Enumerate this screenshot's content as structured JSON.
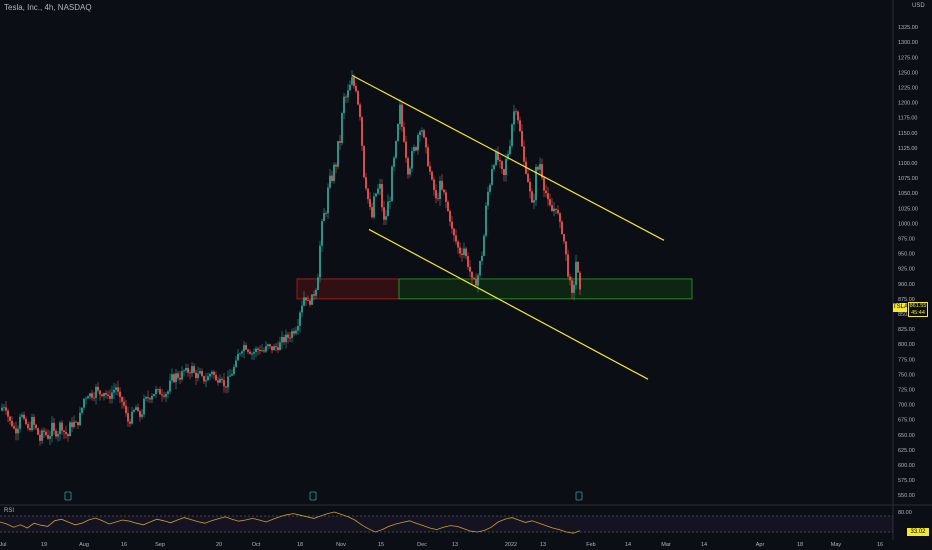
{
  "header": {
    "title": "Tesla, Inc., 4h, NASDAQ"
  },
  "currency": "USD",
  "badges": {
    "ticker": "TSLA",
    "price": "861.55",
    "countdown": "45:44",
    "rsi_value": "33.02"
  },
  "rsi": {
    "label": "RSI",
    "upper": "80.00"
  },
  "colors": {
    "up": "#26a69a",
    "down": "#ef5350",
    "channel": "#f5e92b",
    "rsi": "#c9a227",
    "demand_zone": "#2aa02a",
    "supply_zone": "#b22222"
  },
  "chart_data": {
    "type": "candlestick",
    "title": "Tesla, Inc., 4h, NASDAQ",
    "x_ticks": [
      "Jul",
      "19",
      "Aug",
      "16",
      "Sep",
      "20",
      "Oct",
      "18",
      "Nov",
      "15",
      "Dec",
      "13",
      "2022",
      "13",
      "Feb",
      "14",
      "Mar",
      "14",
      "Apr",
      "18",
      "May",
      "16"
    ],
    "y_ticks": [
      550,
      575,
      600,
      625,
      650,
      675,
      700,
      725,
      750,
      775,
      800,
      825,
      850,
      875,
      900,
      925,
      950,
      975,
      1000,
      1025,
      1050,
      1075,
      1100,
      1125,
      1150,
      1175,
      1200,
      1225,
      1250,
      1275,
      1300,
      1325
    ],
    "ylim": [
      542,
      1345
    ],
    "close_path": [
      [
        0,
        690
      ],
      [
        4,
        700
      ],
      [
        8,
        680
      ],
      [
        12,
        665
      ],
      [
        16,
        655
      ],
      [
        20,
        690
      ],
      [
        24,
        675
      ],
      [
        28,
        660
      ],
      [
        32,
        672
      ],
      [
        36,
        660
      ],
      [
        40,
        640
      ],
      [
        44,
        655
      ],
      [
        48,
        645
      ],
      [
        52,
        660
      ],
      [
        56,
        650
      ],
      [
        60,
        665
      ],
      [
        64,
        655
      ],
      [
        68,
        648
      ],
      [
        72,
        672
      ],
      [
        76,
        668
      ],
      [
        80,
        680
      ],
      [
        84,
        710
      ],
      [
        88,
        720
      ],
      [
        92,
        715
      ],
      [
        96,
        725
      ],
      [
        100,
        718
      ],
      [
        104,
        722
      ],
      [
        108,
        712
      ],
      [
        112,
        720
      ],
      [
        116,
        730
      ],
      [
        120,
        712
      ],
      [
        124,
        698
      ],
      [
        128,
        672
      ],
      [
        132,
        680
      ],
      [
        136,
        695
      ],
      [
        140,
        680
      ],
      [
        144,
        700
      ],
      [
        148,
        712
      ],
      [
        152,
        718
      ],
      [
        156,
        722
      ],
      [
        160,
        720
      ],
      [
        164,
        718
      ],
      [
        168,
        722
      ],
      [
        172,
        740
      ],
      [
        176,
        748
      ],
      [
        180,
        745
      ],
      [
        184,
        755
      ],
      [
        188,
        755
      ],
      [
        192,
        760
      ],
      [
        196,
        745
      ],
      [
        200,
        750
      ],
      [
        204,
        740
      ],
      [
        208,
        745
      ],
      [
        212,
        758
      ],
      [
        216,
        740
      ],
      [
        220,
        752
      ],
      [
        224,
        730
      ],
      [
        228,
        738
      ],
      [
        232,
        755
      ],
      [
        236,
        765
      ],
      [
        240,
        792
      ],
      [
        244,
        798
      ],
      [
        248,
        790
      ],
      [
        252,
        785
      ],
      [
        256,
        790
      ],
      [
        260,
        792
      ],
      [
        264,
        788
      ],
      [
        268,
        796
      ],
      [
        272,
        792
      ],
      [
        276,
        795
      ],
      [
        280,
        800
      ],
      [
        284,
        808
      ],
      [
        288,
        812
      ],
      [
        292,
        820
      ],
      [
        296,
        830
      ],
      [
        300,
        860
      ],
      [
        304,
        880
      ],
      [
        308,
        870
      ],
      [
        312,
        875
      ],
      [
        316,
        900
      ],
      [
        320,
        960
      ],
      [
        324,
        1010
      ],
      [
        328,
        1050
      ],
      [
        332,
        1080
      ],
      [
        336,
        1100
      ],
      [
        340,
        1140
      ],
      [
        344,
        1200
      ],
      [
        348,
        1215
      ],
      [
        352,
        1235
      ],
      [
        356,
        1220
      ],
      [
        360,
        1180
      ],
      [
        364,
        1090
      ],
      [
        368,
        1040
      ],
      [
        372,
        1010
      ],
      [
        376,
        1050
      ],
      [
        380,
        1060
      ],
      [
        384,
        1000
      ],
      [
        388,
        1030
      ],
      [
        392,
        1075
      ],
      [
        396,
        1120
      ],
      [
        400,
        1180
      ],
      [
        404,
        1140
      ],
      [
        408,
        1090
      ],
      [
        412,
        1110
      ],
      [
        416,
        1130
      ],
      [
        420,
        1170
      ],
      [
        424,
        1140
      ],
      [
        428,
        1100
      ],
      [
        432,
        1070
      ],
      [
        436,
        1040
      ],
      [
        440,
        1060
      ],
      [
        444,
        1050
      ],
      [
        448,
        1020
      ],
      [
        452,
        990
      ],
      [
        456,
        970
      ],
      [
        460,
        950
      ],
      [
        464,
        960
      ],
      [
        468,
        930
      ],
      [
        472,
        910
      ],
      [
        476,
        900
      ],
      [
        480,
        930
      ],
      [
        484,
        980
      ],
      [
        488,
        1050
      ],
      [
        492,
        1100
      ],
      [
        496,
        1110
      ],
      [
        500,
        1100
      ],
      [
        504,
        1080
      ],
      [
        508,
        1120
      ],
      [
        512,
        1170
      ],
      [
        516,
        1200
      ],
      [
        520,
        1150
      ],
      [
        524,
        1100
      ],
      [
        528,
        1070
      ],
      [
        532,
        1030
      ],
      [
        536,
        1080
      ],
      [
        540,
        1100
      ],
      [
        544,
        1060
      ],
      [
        548,
        1040
      ],
      [
        552,
        1020
      ],
      [
        556,
        1030
      ],
      [
        560,
        1000
      ],
      [
        564,
        970
      ],
      [
        568,
        920
      ],
      [
        572,
        880
      ],
      [
        576,
        940
      ],
      [
        580,
        880
      ]
    ],
    "channel_lines": [
      [
        [
          352,
          1245
        ],
        [
          664,
          972
        ]
      ],
      [
        [
          369,
          990
        ],
        [
          648,
          742
        ]
      ]
    ],
    "zones": [
      {
        "name": "supply",
        "x": [
          297,
          399
        ],
        "y": [
          875,
          908
        ]
      },
      {
        "name": "demand",
        "x": [
          399,
          692
        ],
        "y": [
          875,
          908
        ]
      }
    ],
    "rsi": {
      "ylim": [
        20,
        90
      ],
      "levels": [
        70,
        30
      ],
      "values": [
        55,
        50,
        42,
        48,
        40,
        52,
        47,
        44,
        58,
        62,
        55,
        48,
        52,
        60,
        65,
        58,
        50,
        55,
        60,
        57,
        52,
        48,
        55,
        62,
        58,
        53,
        60,
        66,
        61,
        56,
        52,
        58,
        63,
        68,
        62,
        57,
        60,
        64,
        60,
        55,
        62,
        68,
        73,
        76,
        72,
        68,
        64,
        70,
        76,
        80,
        74,
        68,
        60,
        48,
        38,
        30,
        36,
        44,
        50,
        54,
        58,
        52,
        46,
        40,
        36,
        42,
        46,
        44,
        38,
        32,
        30,
        34,
        42,
        55,
        62,
        66,
        60,
        54,
        58,
        52,
        46,
        40,
        36,
        30,
        27,
        33
      ]
    }
  }
}
